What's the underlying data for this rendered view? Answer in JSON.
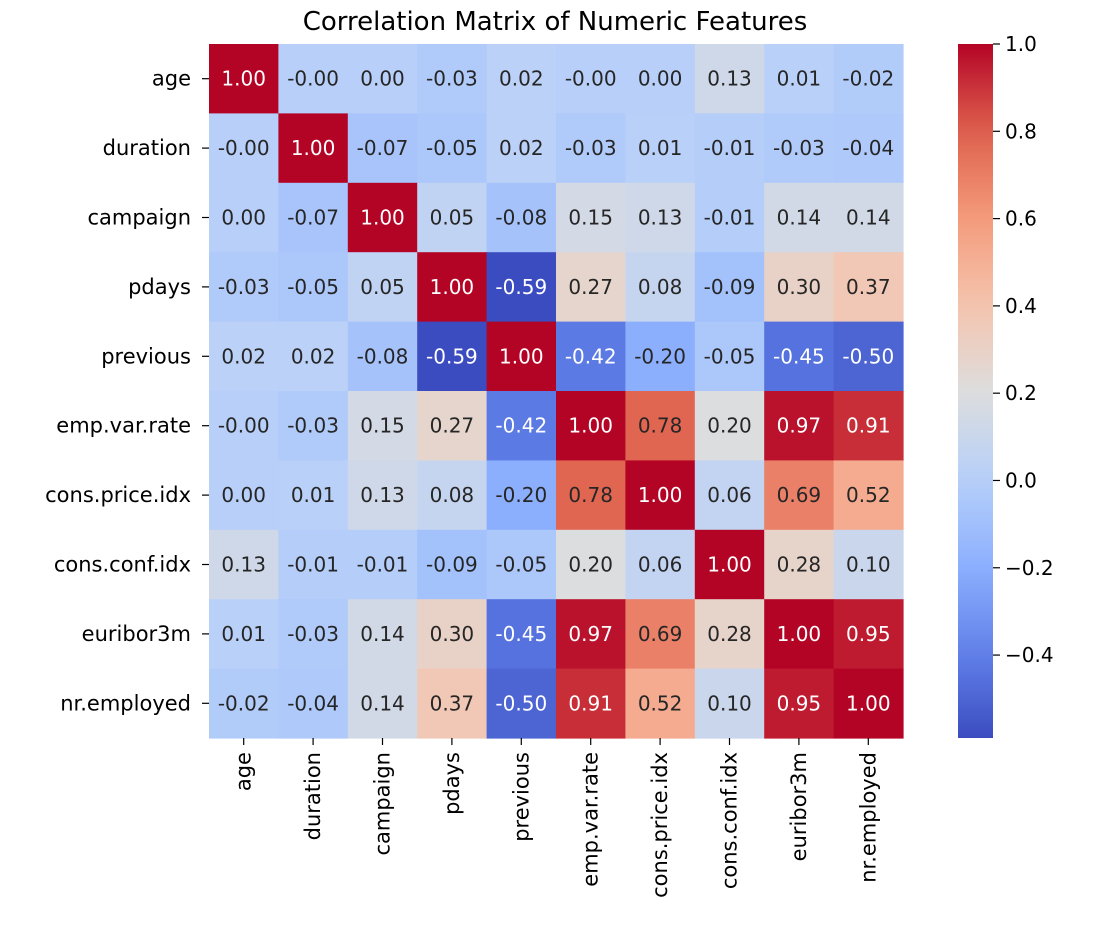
{
  "chart_data": {
    "type": "heatmap",
    "title": "Correlation Matrix of Numeric Features",
    "row_labels": [
      "age",
      "duration",
      "campaign",
      "pdays",
      "previous",
      "emp.var.rate",
      "cons.price.idx",
      "cons.conf.idx",
      "euribor3m",
      "nr.employed"
    ],
    "col_labels": [
      "age",
      "duration",
      "campaign",
      "pdays",
      "previous",
      "emp.var.rate",
      "cons.price.idx",
      "cons.conf.idx",
      "euribor3m",
      "nr.employed"
    ],
    "values": [
      [
        1.0,
        -0.0,
        0.0,
        -0.03,
        0.02,
        -0.0,
        0.0,
        0.13,
        0.01,
        -0.02
      ],
      [
        -0.0,
        1.0,
        -0.07,
        -0.05,
        0.02,
        -0.03,
        0.01,
        -0.01,
        -0.03,
        -0.04
      ],
      [
        0.0,
        -0.07,
        1.0,
        0.05,
        -0.08,
        0.15,
        0.13,
        -0.01,
        0.14,
        0.14
      ],
      [
        -0.03,
        -0.05,
        0.05,
        1.0,
        -0.59,
        0.27,
        0.08,
        -0.09,
        0.3,
        0.37
      ],
      [
        0.02,
        0.02,
        -0.08,
        -0.59,
        1.0,
        -0.42,
        -0.2,
        -0.05,
        -0.45,
        -0.5
      ],
      [
        -0.0,
        -0.03,
        0.15,
        0.27,
        -0.42,
        1.0,
        0.78,
        0.2,
        0.97,
        0.91
      ],
      [
        0.0,
        0.01,
        0.13,
        0.08,
        -0.2,
        0.78,
        1.0,
        0.06,
        0.69,
        0.52
      ],
      [
        0.13,
        -0.01,
        -0.01,
        -0.09,
        -0.05,
        0.2,
        0.06,
        1.0,
        0.28,
        0.1
      ],
      [
        0.01,
        -0.03,
        0.14,
        0.3,
        -0.45,
        0.97,
        0.69,
        0.28,
        1.0,
        0.95
      ],
      [
        -0.02,
        -0.04,
        0.14,
        0.37,
        -0.5,
        0.91,
        0.52,
        0.1,
        0.95,
        1.0
      ]
    ],
    "colormap": "coolwarm",
    "vmin": -0.59,
    "vmax": 1.0,
    "annotation_format": "0.00",
    "colorbar_ticks": [
      1.0,
      0.8,
      0.6,
      0.4,
      0.2,
      0.0,
      -0.2,
      -0.4
    ],
    "colorbar_tick_labels": [
      "1.0",
      "0.8",
      "0.6",
      "0.4",
      "0.2",
      "0.0",
      "−0.2",
      "−0.4"
    ],
    "colorbar_position": "right"
  }
}
